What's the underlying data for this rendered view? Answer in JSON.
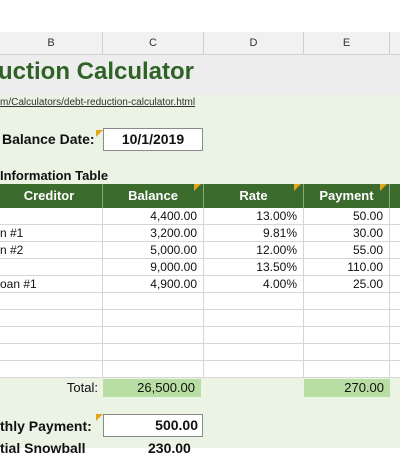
{
  "columns": [
    "B",
    "C",
    "D",
    "E"
  ],
  "title": "uction Calculator",
  "link": "m/Calculators/debt-reduction-calculator.html",
  "balance_date": {
    "label": "Balance Date:",
    "value": "10/1/2019"
  },
  "table_title": "Information Table",
  "headers": {
    "creditor": "Creditor",
    "balance": "Balance",
    "rate": "Rate",
    "payment": "Payment"
  },
  "rows": [
    {
      "creditor": "",
      "balance": "4,400.00",
      "rate": "13.00%",
      "payment": "50.00"
    },
    {
      "creditor": "n #1",
      "balance": "3,200.00",
      "rate": "9.81%",
      "payment": "30.00"
    },
    {
      "creditor": "n #2",
      "balance": "5,000.00",
      "rate": "12.00%",
      "payment": "55.00"
    },
    {
      "creditor": "",
      "balance": "9,000.00",
      "rate": "13.50%",
      "payment": "110.00"
    },
    {
      "creditor": "oan #1",
      "balance": "4,900.00",
      "rate": "4.00%",
      "payment": "25.00"
    },
    {
      "creditor": "",
      "balance": "",
      "rate": "",
      "payment": ""
    },
    {
      "creditor": "",
      "balance": "",
      "rate": "",
      "payment": ""
    },
    {
      "creditor": "",
      "balance": "",
      "rate": "",
      "payment": ""
    },
    {
      "creditor": "",
      "balance": "",
      "rate": "",
      "payment": ""
    },
    {
      "creditor": "",
      "balance": "",
      "rate": "",
      "payment": ""
    }
  ],
  "totals": {
    "label": "Total:",
    "balance": "26,500.00",
    "payment": "270.00"
  },
  "monthly_payment": {
    "label": "thly Payment:",
    "value": "500.00"
  },
  "next_label": "tial Snowball",
  "next_value": "230.00",
  "colors": {
    "title": "#2f6326",
    "header_bg": "#3c6b2e",
    "band": "#eaf3e4",
    "total_bg": "#b9dea4",
    "marker": "#e3a81a"
  }
}
